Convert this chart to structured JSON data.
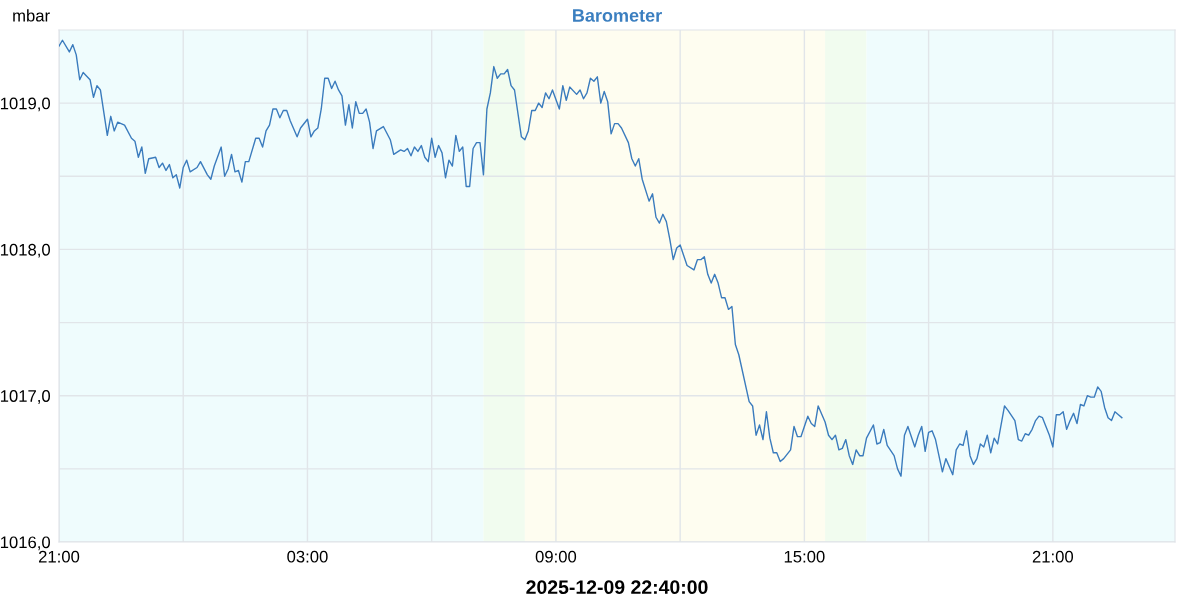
{
  "chart_data": {
    "type": "line",
    "title": "Barometer",
    "xlabel": "2025-12-09 22:40:00",
    "ylabel": "mbar",
    "x": [
      "2025-12-08T21:00",
      "2025-12-08T21:05",
      "2025-12-08T21:15",
      "2025-12-08T21:20",
      "2025-12-08T21:25",
      "2025-12-08T21:30",
      "2025-12-08T21:35",
      "2025-12-08T21:45",
      "2025-12-08T21:50",
      "2025-12-08T21:55",
      "2025-12-08T22:00",
      "2025-12-08T22:10",
      "2025-12-08T22:15",
      "2025-12-08T22:20",
      "2025-12-08T22:25",
      "2025-12-08T22:35",
      "2025-12-08T22:45",
      "2025-12-08T22:50",
      "2025-12-08T22:55",
      "2025-12-08T23:00",
      "2025-12-08T23:05",
      "2025-12-08T23:10",
      "2025-12-08T23:20",
      "2025-12-08T23:25",
      "2025-12-08T23:30",
      "2025-12-08T23:35",
      "2025-12-08T23:40",
      "2025-12-08T23:45",
      "2025-12-08T23:50",
      "2025-12-08T23:55",
      "2025-12-09T00:00",
      "2025-12-09T00:05",
      "2025-12-09T00:10",
      "2025-12-09T00:20",
      "2025-12-09T00:25",
      "2025-12-09T00:35",
      "2025-12-09T00:40",
      "2025-12-09T00:45",
      "2025-12-09T00:55",
      "2025-12-09T01:00",
      "2025-12-09T01:05",
      "2025-12-09T01:10",
      "2025-12-09T01:15",
      "2025-12-09T01:20",
      "2025-12-09T01:25",
      "2025-12-09T01:30",
      "2025-12-09T01:35",
      "2025-12-09T01:45",
      "2025-12-09T01:50",
      "2025-12-09T01:55",
      "2025-12-09T02:00",
      "2025-12-09T02:05",
      "2025-12-09T02:10",
      "2025-12-09T02:15",
      "2025-12-09T02:20",
      "2025-12-09T02:25",
      "2025-12-09T02:30",
      "2025-12-09T02:35",
      "2025-12-09T02:45",
      "2025-12-09T02:50",
      "2025-12-09T03:00",
      "2025-12-09T03:05",
      "2025-12-09T03:10",
      "2025-12-09T03:15",
      "2025-12-09T03:20",
      "2025-12-09T03:25",
      "2025-12-09T03:30",
      "2025-12-09T03:35",
      "2025-12-09T03:40",
      "2025-12-09T03:45",
      "2025-12-09T03:50",
      "2025-12-09T03:55",
      "2025-12-09T04:00",
      "2025-12-09T04:05",
      "2025-12-09T04:10",
      "2025-12-09T04:15",
      "2025-12-09T04:20",
      "2025-12-09T04:25",
      "2025-12-09T04:30",
      "2025-12-09T04:35",
      "2025-12-09T04:40",
      "2025-12-09T04:50",
      "2025-12-09T05:00",
      "2025-12-09T05:05",
      "2025-12-09T05:15",
      "2025-12-09T05:20",
      "2025-12-09T05:25",
      "2025-12-09T05:30",
      "2025-12-09T05:35",
      "2025-12-09T05:40",
      "2025-12-09T05:45",
      "2025-12-09T05:50",
      "2025-12-09T05:55",
      "2025-12-09T06:00",
      "2025-12-09T06:05",
      "2025-12-09T06:10",
      "2025-12-09T06:15",
      "2025-12-09T06:20",
      "2025-12-09T06:25",
      "2025-12-09T06:30",
      "2025-12-09T06:35",
      "2025-12-09T06:40",
      "2025-12-09T06:45",
      "2025-12-09T06:50",
      "2025-12-09T06:55",
      "2025-12-09T07:00",
      "2025-12-09T07:05",
      "2025-12-09T07:10",
      "2025-12-09T07:15",
      "2025-12-09T07:20",
      "2025-12-09T07:25",
      "2025-12-09T07:30",
      "2025-12-09T07:35",
      "2025-12-09T07:40",
      "2025-12-09T07:45",
      "2025-12-09T07:50",
      "2025-12-09T07:55",
      "2025-12-09T08:00",
      "2025-12-09T08:10",
      "2025-12-09T08:15",
      "2025-12-09T08:20",
      "2025-12-09T08:25",
      "2025-12-09T08:30",
      "2025-12-09T08:35",
      "2025-12-09T08:40",
      "2025-12-09T08:45",
      "2025-12-09T08:50",
      "2025-12-09T08:55",
      "2025-12-09T09:05",
      "2025-12-09T09:10",
      "2025-12-09T09:15",
      "2025-12-09T09:20",
      "2025-12-09T09:30",
      "2025-12-09T09:35",
      "2025-12-09T09:40",
      "2025-12-09T09:45",
      "2025-12-09T09:50",
      "2025-12-09T09:55",
      "2025-12-09T10:00",
      "2025-12-09T10:05",
      "2025-12-09T10:10",
      "2025-12-09T10:15",
      "2025-12-09T10:20",
      "2025-12-09T10:25",
      "2025-12-09T10:30",
      "2025-12-09T10:35",
      "2025-12-09T10:45",
      "2025-12-09T10:50",
      "2025-12-09T10:55",
      "2025-12-09T11:00",
      "2025-12-09T11:05",
      "2025-12-09T11:15",
      "2025-12-09T11:20",
      "2025-12-09T11:25",
      "2025-12-09T11:30",
      "2025-12-09T11:35",
      "2025-12-09T11:40",
      "2025-12-09T11:45",
      "2025-12-09T11:50",
      "2025-12-09T11:55",
      "2025-12-09T12:00",
      "2025-12-09T12:10",
      "2025-12-09T12:20",
      "2025-12-09T12:25",
      "2025-12-09T12:30",
      "2025-12-09T12:35",
      "2025-12-09T12:40",
      "2025-12-09T12:45",
      "2025-12-09T12:50",
      "2025-12-09T12:55",
      "2025-12-09T13:00",
      "2025-12-09T13:05",
      "2025-12-09T13:10",
      "2025-12-09T13:15",
      "2025-12-09T13:20",
      "2025-12-09T13:25",
      "2025-12-09T13:40",
      "2025-12-09T13:45",
      "2025-12-09T13:50",
      "2025-12-09T13:55",
      "2025-12-09T14:00",
      "2025-12-09T14:05",
      "2025-12-09T14:10",
      "2025-12-09T14:15",
      "2025-12-09T14:20",
      "2025-12-09T14:25",
      "2025-12-09T14:30",
      "2025-12-09T14:40",
      "2025-12-09T14:45",
      "2025-12-09T14:50",
      "2025-12-09T14:55",
      "2025-12-09T15:05",
      "2025-12-09T15:10",
      "2025-12-09T15:15",
      "2025-12-09T15:20",
      "2025-12-09T15:30",
      "2025-12-09T15:35",
      "2025-12-09T15:40",
      "2025-12-09T15:45",
      "2025-12-09T15:50",
      "2025-12-09T15:55",
      "2025-12-09T16:00",
      "2025-12-09T16:05",
      "2025-12-09T16:10",
      "2025-12-09T16:15",
      "2025-12-09T16:20",
      "2025-12-09T16:25",
      "2025-12-09T16:30",
      "2025-12-09T16:40",
      "2025-12-09T16:45",
      "2025-12-09T16:50",
      "2025-12-09T16:55",
      "2025-12-09T17:00",
      "2025-12-09T17:10",
      "2025-12-09T17:15",
      "2025-12-09T17:20",
      "2025-12-09T17:25",
      "2025-12-09T17:30",
      "2025-12-09T17:40",
      "2025-12-09T17:45",
      "2025-12-09T17:50",
      "2025-12-09T17:55",
      "2025-12-09T18:00",
      "2025-12-09T18:05",
      "2025-12-09T18:10",
      "2025-12-09T18:20",
      "2025-12-09T18:25",
      "2025-12-09T18:35",
      "2025-12-09T18:40",
      "2025-12-09T18:45",
      "2025-12-09T18:50",
      "2025-12-09T18:55",
      "2025-12-09T19:00",
      "2025-12-09T19:05",
      "2025-12-09T19:10",
      "2025-12-09T19:15",
      "2025-12-09T19:20",
      "2025-12-09T19:25",
      "2025-12-09T19:30",
      "2025-12-09T19:35",
      "2025-12-09T19:40",
      "2025-12-09T19:50",
      "2025-12-09T19:55",
      "2025-12-09T20:05",
      "2025-12-09T20:10",
      "2025-12-09T20:15",
      "2025-12-09T20:20",
      "2025-12-09T20:25",
      "2025-12-09T20:30",
      "2025-12-09T20:35",
      "2025-12-09T20:40",
      "2025-12-09T20:45",
      "2025-12-09T20:50",
      "2025-12-09T20:55",
      "2025-12-09T21:00",
      "2025-12-09T21:05",
      "2025-12-09T21:10",
      "2025-12-09T21:15",
      "2025-12-09T21:20",
      "2025-12-09T21:25",
      "2025-12-09T21:30",
      "2025-12-09T21:35",
      "2025-12-09T21:40",
      "2025-12-09T21:45",
      "2025-12-09T21:50",
      "2025-12-09T21:55",
      "2025-12-09T22:00",
      "2025-12-09T22:05",
      "2025-12-09T22:10",
      "2025-12-09T22:15",
      "2025-12-09T22:20",
      "2025-12-09T22:25",
      "2025-12-09T22:30",
      "2025-12-09T22:35",
      "2025-12-09T22:40"
    ],
    "series": [
      {
        "color": "#3a7bbd",
        "values": [
          1019.39,
          1019.43,
          1019.35,
          1019.4,
          1019.33,
          1019.16,
          1019.21,
          1019.16,
          1019.04,
          1019.12,
          1019.09,
          1018.78,
          1018.91,
          1018.81,
          1018.87,
          1018.85,
          1018.76,
          1018.74,
          1018.63,
          1018.7,
          1018.52,
          1018.62,
          1018.63,
          1018.56,
          1018.59,
          1018.54,
          1018.58,
          1018.49,
          1018.51,
          1018.42,
          1018.56,
          1018.61,
          1018.53,
          1018.56,
          1018.6,
          1018.51,
          1018.48,
          1018.57,
          1018.7,
          1018.5,
          1018.55,
          1018.65,
          1018.53,
          1018.54,
          1018.46,
          1018.6,
          1018.6,
          1018.76,
          1018.76,
          1018.7,
          1018.81,
          1018.85,
          1018.96,
          1018.96,
          1018.9,
          1018.95,
          1018.95,
          1018.88,
          1018.77,
          1018.83,
          1018.89,
          1018.77,
          1018.81,
          1018.83,
          1018.96,
          1019.17,
          1019.17,
          1019.1,
          1019.15,
          1019.09,
          1019.05,
          1018.85,
          1018.99,
          1018.83,
          1019.01,
          1018.93,
          1018.93,
          1018.96,
          1018.87,
          1018.69,
          1018.81,
          1018.84,
          1018.75,
          1018.65,
          1018.68,
          1018.67,
          1018.69,
          1018.64,
          1018.7,
          1018.67,
          1018.71,
          1018.63,
          1018.6,
          1018.76,
          1018.63,
          1018.71,
          1018.66,
          1018.49,
          1018.61,
          1018.57,
          1018.78,
          1018.67,
          1018.7,
          1018.43,
          1018.43,
          1018.69,
          1018.73,
          1018.73,
          1018.51,
          1018.96,
          1019.07,
          1019.25,
          1019.17,
          1019.2,
          1019.2,
          1019.23,
          1019.12,
          1019.09,
          1018.77,
          1018.75,
          1018.81,
          1018.95,
          1018.95,
          1019.0,
          1018.97,
          1019.07,
          1019.03,
          1019.09,
          1018.96,
          1019.12,
          1019.02,
          1019.11,
          1019.06,
          1019.09,
          1019.03,
          1019.07,
          1019.17,
          1019.15,
          1019.18,
          1019.0,
          1019.08,
          1019.01,
          1018.79,
          1018.86,
          1018.86,
          1018.83,
          1018.73,
          1018.62,
          1018.57,
          1018.62,
          1018.48,
          1018.33,
          1018.38,
          1018.22,
          1018.18,
          1018.24,
          1018.19,
          1018.07,
          1017.93,
          1018.01,
          1018.03,
          1017.89,
          1017.86,
          1017.93,
          1017.93,
          1017.95,
          1017.83,
          1017.77,
          1017.83,
          1017.77,
          1017.67,
          1017.67,
          1017.59,
          1017.61,
          1017.35,
          1017.28,
          1016.96,
          1016.93,
          1016.73,
          1016.8,
          1016.7,
          1016.89,
          1016.71,
          1016.61,
          1016.61,
          1016.55,
          1016.57,
          1016.63,
          1016.79,
          1016.72,
          1016.72,
          1016.86,
          1016.81,
          1016.79,
          1016.93,
          1016.82,
          1016.73,
          1016.7,
          1016.73,
          1016.63,
          1016.64,
          1016.7,
          1016.59,
          1016.53,
          1016.63,
          1016.59,
          1016.59,
          1016.71,
          1016.8,
          1016.67,
          1016.68,
          1016.77,
          1016.66,
          1016.59,
          1016.5,
          1016.45,
          1016.73,
          1016.79,
          1016.65,
          1016.73,
          1016.79,
          1016.62,
          1016.75,
          1016.76,
          1016.7,
          1016.48,
          1016.57,
          1016.46,
          1016.63,
          1016.67,
          1016.66,
          1016.76,
          1016.59,
          1016.53,
          1016.57,
          1016.67,
          1016.65,
          1016.73,
          1016.61,
          1016.71,
          1016.67,
          1016.93,
          1016.9,
          1016.83,
          1016.7,
          1016.69,
          1016.74,
          1016.73,
          1016.77,
          1016.83,
          1016.86,
          1016.85,
          1016.79,
          1016.73,
          1016.65,
          1016.87,
          1016.87,
          1016.89,
          1016.77,
          1016.83,
          1016.88,
          1016.81,
          1016.94,
          1016.93,
          1017.0,
          1016.99,
          1016.99,
          1017.06,
          1017.03,
          1016.92,
          1016.85,
          1016.83,
          1016.89,
          1016.87,
          1016.85
        ]
      }
    ],
    "xlim": [
      "2025-12-08T21:00",
      "2025-12-09T23:57"
    ],
    "xticks": [
      {
        "value": "2025-12-08T21:00",
        "label": "21:00"
      },
      {
        "value": "2025-12-09T00:00",
        "label": null
      },
      {
        "value": "2025-12-09T03:00",
        "label": "03:00"
      },
      {
        "value": "2025-12-09T06:00",
        "label": null
      },
      {
        "value": "2025-12-09T09:00",
        "label": "09:00"
      },
      {
        "value": "2025-12-09T12:00",
        "label": null
      },
      {
        "value": "2025-12-09T15:00",
        "label": "15:00"
      },
      {
        "value": "2025-12-09T18:00",
        "label": null
      },
      {
        "value": "2025-12-09T21:00",
        "label": "21:00"
      }
    ],
    "ylim": [
      1016.0,
      1019.5
    ],
    "yticks": [
      {
        "value": 1016.0,
        "label": "1016,0"
      },
      {
        "value": 1016.5,
        "label": null
      },
      {
        "value": 1017.0,
        "label": "1017,0"
      },
      {
        "value": 1017.5,
        "label": null
      },
      {
        "value": 1018.0,
        "label": "1018,0"
      },
      {
        "value": 1018.5,
        "label": null
      },
      {
        "value": 1019.0,
        "label": "1019,0"
      }
    ],
    "grid": true,
    "line_style": "solid",
    "marker": "none",
    "bands": [
      {
        "axis": "x",
        "from": "2025-12-08T21:00",
        "to": "2025-12-09T07:15",
        "color": "#effcfd"
      },
      {
        "axis": "x",
        "from": "2025-12-09T07:15",
        "to": "2025-12-09T08:15",
        "color": "#f1fcef"
      },
      {
        "axis": "x",
        "from": "2025-12-09T08:15",
        "to": "2025-12-09T15:30",
        "color": "#fefdf0"
      },
      {
        "axis": "x",
        "from": "2025-12-09T15:30",
        "to": "2025-12-09T16:30",
        "color": "#f1fcef"
      },
      {
        "axis": "x",
        "from": "2025-12-09T16:30",
        "to": "2025-12-09T23:57",
        "color": "#effcfd"
      }
    ]
  }
}
